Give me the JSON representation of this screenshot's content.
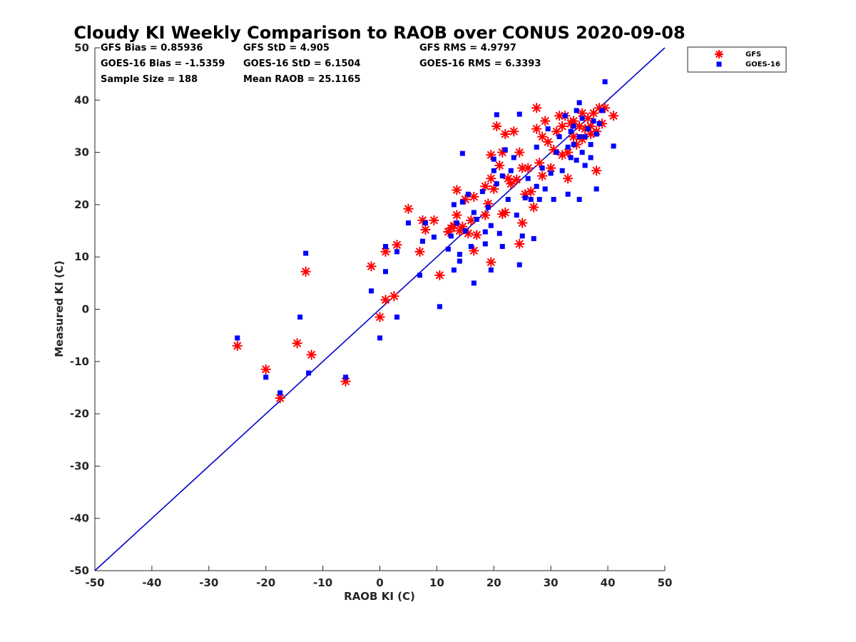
{
  "chart_data": {
    "type": "scatter",
    "title": "Cloudy KI Weekly Comparison to RAOB over CONUS 2020-09-08",
    "xlabel": "RAOB KI (C)",
    "ylabel": "Measured KI (C)",
    "xlim": [
      -50,
      50
    ],
    "ylim": [
      -50,
      50
    ],
    "xticks": [
      -50,
      -40,
      -30,
      -20,
      -10,
      0,
      10,
      20,
      30,
      40,
      50
    ],
    "yticks": [
      -50,
      -40,
      -30,
      -20,
      -10,
      0,
      10,
      20,
      30,
      40,
      50
    ],
    "stats": [
      {
        "text": "GFS Bias = 0.85936"
      },
      {
        "text": "GFS StD = 4.905"
      },
      {
        "text": "GFS RMS = 4.9797"
      },
      {
        "text": "GOES-16 Bias = -1.5359"
      },
      {
        "text": "GOES-16 StD = 6.1504"
      },
      {
        "text": "GOES-16 RMS = 6.3393"
      },
      {
        "text": "Sample Size = 188"
      },
      {
        "text": "Mean RAOB = 25.1165"
      }
    ],
    "reference_line": {
      "name": "1:1",
      "x": [
        -50,
        50
      ],
      "y": [
        -50,
        50
      ],
      "color": "#0000cc"
    },
    "legend": {
      "position": "top-right-outside"
    },
    "series": [
      {
        "name": "GFS",
        "marker": "asterisk",
        "color": "#ff0000",
        "points": [
          [
            -25,
            -7
          ],
          [
            -20,
            -11.5
          ],
          [
            -17.5,
            -17
          ],
          [
            -14.5,
            -6.5
          ],
          [
            -13,
            7.2
          ],
          [
            -12,
            -8.7
          ],
          [
            -6,
            -13.8
          ],
          [
            -1.5,
            8.2
          ],
          [
            0,
            -1.5
          ],
          [
            1,
            11
          ],
          [
            1,
            1.8
          ],
          [
            2.5,
            2.5
          ],
          [
            3,
            12.3
          ],
          [
            5,
            19.2
          ],
          [
            7,
            11
          ],
          [
            7.5,
            17
          ],
          [
            8,
            15.2
          ],
          [
            9.5,
            17
          ],
          [
            10.5,
            6.5
          ],
          [
            12,
            14.8
          ],
          [
            12.5,
            15.5
          ],
          [
            13,
            16
          ],
          [
            13.5,
            22.8
          ],
          [
            13.5,
            18
          ],
          [
            14,
            15
          ],
          [
            14.5,
            15.8
          ],
          [
            15,
            21
          ],
          [
            15.5,
            14.5
          ],
          [
            16,
            17
          ],
          [
            16.5,
            21.5
          ],
          [
            16.5,
            11.2
          ],
          [
            17,
            14.2
          ],
          [
            18.5,
            18
          ],
          [
            18.5,
            23.5
          ],
          [
            19,
            20.2
          ],
          [
            19.5,
            29.5
          ],
          [
            19.5,
            25
          ],
          [
            19.5,
            9
          ],
          [
            20,
            23
          ],
          [
            20.5,
            35
          ],
          [
            21,
            27.5
          ],
          [
            21.5,
            18.2
          ],
          [
            21.5,
            30
          ],
          [
            22,
            18.5
          ],
          [
            22,
            33.5
          ],
          [
            22.5,
            25
          ],
          [
            23,
            24
          ],
          [
            23.5,
            34
          ],
          [
            24,
            24.8
          ],
          [
            24.5,
            30
          ],
          [
            24.5,
            12.5
          ],
          [
            25,
            27
          ],
          [
            25,
            16.5
          ],
          [
            25.5,
            22
          ],
          [
            26,
            27
          ],
          [
            26.5,
            22.5
          ],
          [
            27,
            19.5
          ],
          [
            27.5,
            38.5
          ],
          [
            27.5,
            34.5
          ],
          [
            28,
            28
          ],
          [
            28.5,
            25.5
          ],
          [
            28.5,
            33
          ],
          [
            29,
            36
          ],
          [
            29.5,
            32
          ],
          [
            30,
            27
          ],
          [
            30.5,
            30.5
          ],
          [
            31,
            34
          ],
          [
            31.5,
            37
          ],
          [
            32,
            35
          ],
          [
            32,
            29.5
          ],
          [
            32.5,
            37
          ],
          [
            33,
            25
          ],
          [
            33,
            30
          ],
          [
            33.5,
            35.5
          ],
          [
            34,
            33
          ],
          [
            34,
            36
          ],
          [
            34.5,
            31.5
          ],
          [
            35,
            35
          ],
          [
            35.5,
            37.5
          ],
          [
            35.5,
            32.5
          ],
          [
            36,
            34.5
          ],
          [
            36.5,
            36.5
          ],
          [
            37,
            35
          ],
          [
            37,
            33.5
          ],
          [
            37.5,
            37.5
          ],
          [
            38,
            34
          ],
          [
            38,
            26.5
          ],
          [
            38.5,
            38.5
          ],
          [
            39,
            35.5
          ],
          [
            39.5,
            38.5
          ],
          [
            41,
            37
          ]
        ]
      },
      {
        "name": "GOES-16",
        "marker": "square",
        "color": "#0000ff",
        "points": [
          [
            -25,
            -5.5
          ],
          [
            -20,
            -13
          ],
          [
            -17.5,
            -16
          ],
          [
            -14,
            -1.5
          ],
          [
            -13,
            10.7
          ],
          [
            -12.5,
            -12.2
          ],
          [
            -6,
            -13
          ],
          [
            -1.5,
            3.5
          ],
          [
            0,
            -5.5
          ],
          [
            1,
            12
          ],
          [
            1,
            7.2
          ],
          [
            3,
            11
          ],
          [
            3,
            -1.5
          ],
          [
            5,
            16.5
          ],
          [
            7,
            6.5
          ],
          [
            7.5,
            13
          ],
          [
            8,
            16.5
          ],
          [
            9.5,
            13.8
          ],
          [
            10.5,
            0.5
          ],
          [
            12,
            11.5
          ],
          [
            12.5,
            14
          ],
          [
            13,
            7.5
          ],
          [
            13,
            20
          ],
          [
            13.5,
            16.5
          ],
          [
            14,
            9.2
          ],
          [
            14,
            10.5
          ],
          [
            14.5,
            20.5
          ],
          [
            14.5,
            29.8
          ],
          [
            15,
            15
          ],
          [
            15.5,
            22
          ],
          [
            16,
            12
          ],
          [
            16.5,
            18.5
          ],
          [
            16.5,
            5
          ],
          [
            17,
            17.2
          ],
          [
            18,
            22.5
          ],
          [
            18.5,
            12.5
          ],
          [
            18.5,
            14.8
          ],
          [
            19,
            19.5
          ],
          [
            19.5,
            7.5
          ],
          [
            19.5,
            16
          ],
          [
            20,
            26.5
          ],
          [
            20,
            28.7
          ],
          [
            20.5,
            37.2
          ],
          [
            20.5,
            24
          ],
          [
            21,
            14.5
          ],
          [
            21.5,
            12
          ],
          [
            21.5,
            25.5
          ],
          [
            22,
            30.5
          ],
          [
            22.5,
            21
          ],
          [
            23,
            26.5
          ],
          [
            23.5,
            29
          ],
          [
            24,
            18
          ],
          [
            24.5,
            8.5
          ],
          [
            24.5,
            37.3
          ],
          [
            25,
            14
          ],
          [
            25.5,
            21.3
          ],
          [
            26,
            25
          ],
          [
            26.5,
            21
          ],
          [
            27,
            13.5
          ],
          [
            27.5,
            31
          ],
          [
            27.5,
            23.5
          ],
          [
            28,
            21
          ],
          [
            28.5,
            27
          ],
          [
            29,
            23
          ],
          [
            29.5,
            34.5
          ],
          [
            30,
            26
          ],
          [
            30.5,
            21
          ],
          [
            31,
            30
          ],
          [
            31.5,
            33
          ],
          [
            32,
            26.5
          ],
          [
            32.5,
            37
          ],
          [
            33,
            31
          ],
          [
            33,
            22
          ],
          [
            33.5,
            34
          ],
          [
            33.5,
            29
          ],
          [
            34,
            35
          ],
          [
            34,
            31.5
          ],
          [
            34.5,
            38
          ],
          [
            34.5,
            28.5
          ],
          [
            35,
            39.5
          ],
          [
            35,
            33
          ],
          [
            35,
            21
          ],
          [
            35.5,
            36.5
          ],
          [
            35.5,
            30
          ],
          [
            36,
            33
          ],
          [
            36,
            27.5
          ],
          [
            36.5,
            34.5
          ],
          [
            37,
            31.5
          ],
          [
            37,
            29
          ],
          [
            37.5,
            36
          ],
          [
            38,
            33.5
          ],
          [
            38,
            23
          ],
          [
            38.5,
            35.5
          ],
          [
            39,
            38
          ],
          [
            39.5,
            43.5
          ],
          [
            41,
            31.2
          ]
        ]
      }
    ]
  }
}
